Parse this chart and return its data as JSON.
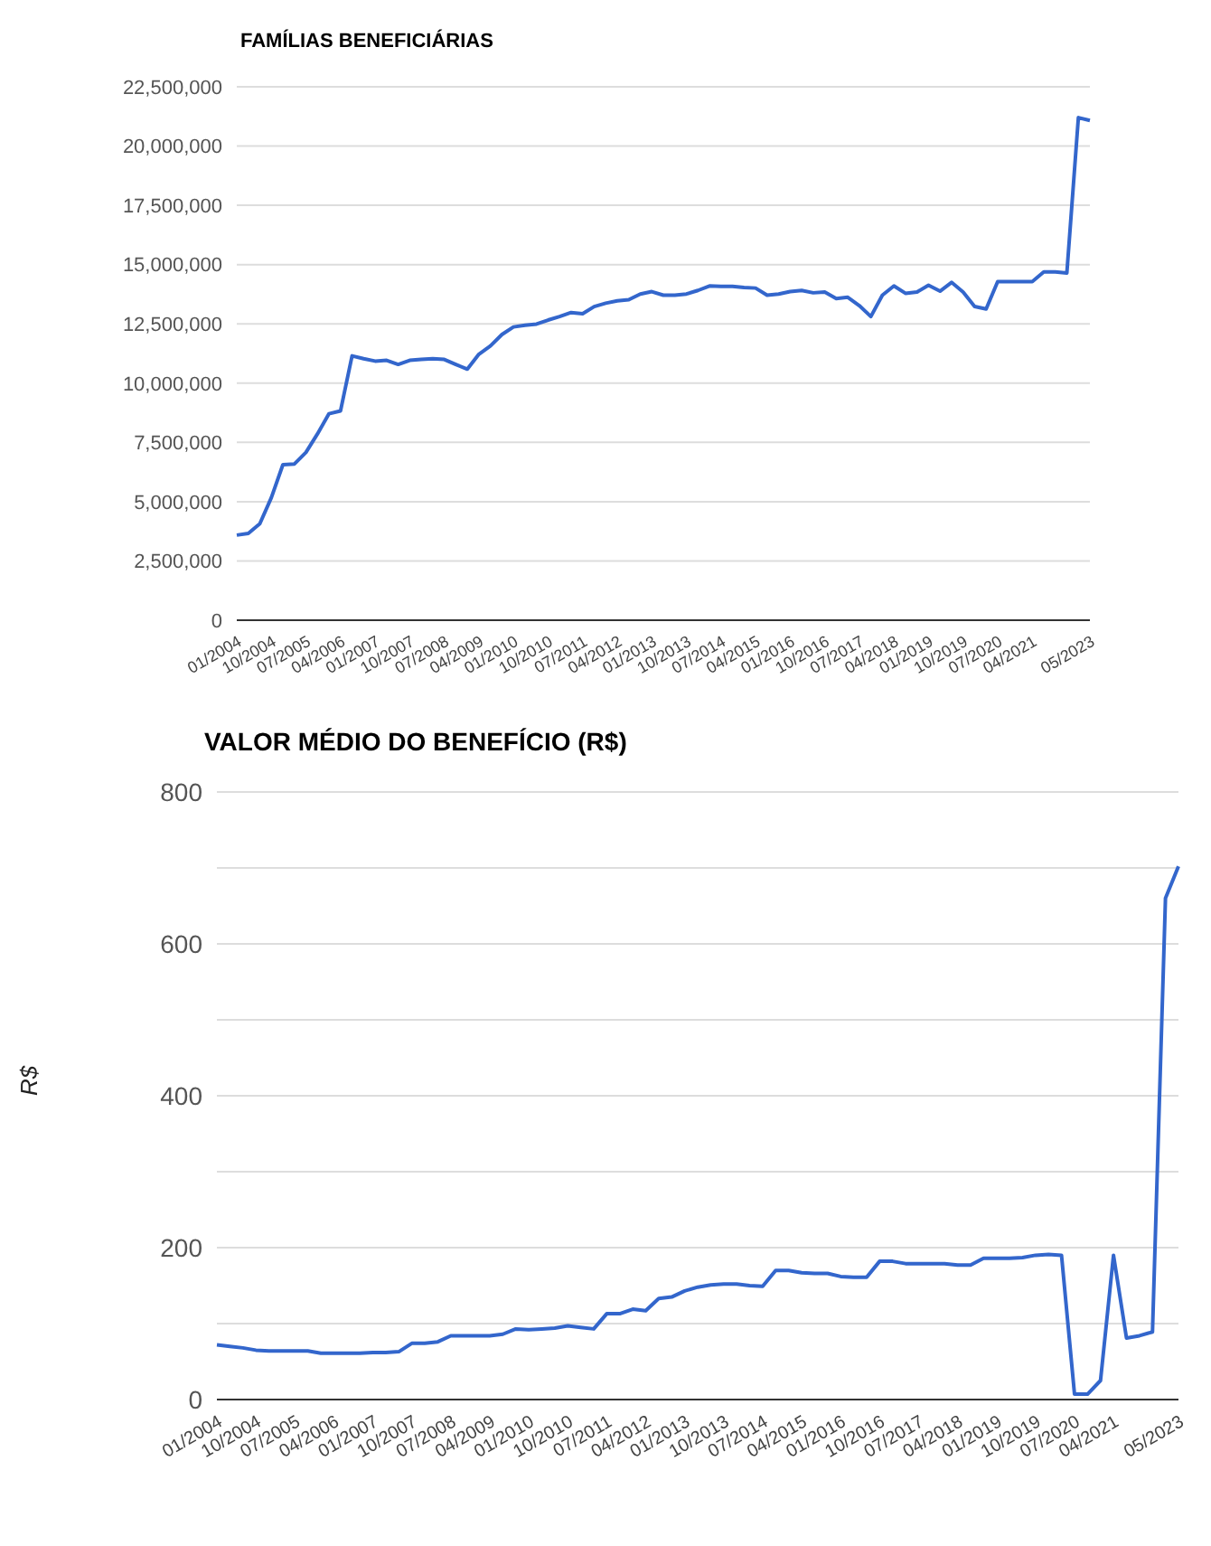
{
  "chart_data": [
    {
      "type": "line",
      "title": "FAMÍLIAS BENEFICIÁRIAS",
      "categories": [
        "01/2004",
        null,
        null,
        "10/2004",
        null,
        null,
        "07/2005",
        null,
        null,
        "04/2006",
        null,
        null,
        "01/2007",
        null,
        null,
        "10/2007",
        null,
        null,
        "07/2008",
        null,
        null,
        "04/2009",
        null,
        null,
        "01/2010",
        null,
        null,
        "10/2010",
        null,
        null,
        "07/2011",
        null,
        null,
        "04/2012",
        null,
        null,
        "01/2013",
        null,
        null,
        "10/2013",
        null,
        null,
        "07/2014",
        null,
        null,
        "04/2015",
        null,
        null,
        "01/2016",
        null,
        null,
        "10/2016",
        null,
        null,
        "07/2017",
        null,
        null,
        "04/2018",
        null,
        null,
        "01/2019",
        null,
        null,
        "10/2019",
        null,
        null,
        "07/2020",
        null,
        null,
        "04/2021",
        null,
        null,
        null,
        null,
        "05/2023"
      ],
      "series": [
        {
          "color": "#3366cc",
          "values": [
            3590000,
            3660000,
            4070000,
            5170000,
            6560000,
            6590000,
            7080000,
            7860000,
            8710000,
            8830000,
            11150000,
            11030000,
            10930000,
            10960000,
            10790000,
            10960000,
            11000000,
            11030000,
            11000000,
            10790000,
            10590000,
            11220000,
            11570000,
            12050000,
            12370000,
            12440000,
            12490000,
            12660000,
            12810000,
            12980000,
            12930000,
            13230000,
            13370000,
            13470000,
            13520000,
            13760000,
            13860000,
            13710000,
            13710000,
            13760000,
            13910000,
            14100000,
            14080000,
            14080000,
            14030000,
            14010000,
            13710000,
            13760000,
            13860000,
            13910000,
            13810000,
            13840000,
            13570000,
            13620000,
            13270000,
            12810000,
            13710000,
            14100000,
            13790000,
            13840000,
            14130000,
            13880000,
            14250000,
            13840000,
            13230000,
            13130000,
            14280000,
            14280000,
            14280000,
            14280000,
            14690000,
            14690000,
            14640000,
            21200000,
            21080000
          ]
        }
      ],
      "ylim": [
        0,
        22500000
      ],
      "yticks": [
        {
          "value": 0,
          "label": "0"
        },
        {
          "value": 2500000,
          "label": "2,500,000"
        },
        {
          "value": 5000000,
          "label": "5,000,000"
        },
        {
          "value": 7500000,
          "label": "7,500,000"
        },
        {
          "value": 10000000,
          "label": "10,000,000"
        },
        {
          "value": 12500000,
          "label": "12,500,000"
        },
        {
          "value": 15000000,
          "label": "15,000,000"
        },
        {
          "value": 17500000,
          "label": "17,500,000"
        },
        {
          "value": 20000000,
          "label": "20,000,000"
        },
        {
          "value": 22500000,
          "label": "22,500,000"
        }
      ],
      "grid": "y",
      "legend": false,
      "marker": "none"
    },
    {
      "type": "line",
      "title": "VALOR MÉDIO DO BENEFÍCIO (R$)",
      "ylabel": "R$",
      "categories": [
        "01/2004",
        null,
        null,
        "10/2004",
        null,
        null,
        "07/2005",
        null,
        null,
        "04/2006",
        null,
        null,
        "01/2007",
        null,
        null,
        "10/2007",
        null,
        null,
        "07/2008",
        null,
        null,
        "04/2009",
        null,
        null,
        "01/2010",
        null,
        null,
        "10/2010",
        null,
        null,
        "07/2011",
        null,
        null,
        "04/2012",
        null,
        null,
        "01/2013",
        null,
        null,
        "10/2013",
        null,
        null,
        "07/2014",
        null,
        null,
        "04/2015",
        null,
        null,
        "01/2016",
        null,
        null,
        "10/2016",
        null,
        null,
        "07/2017",
        null,
        null,
        "04/2018",
        null,
        null,
        "01/2019",
        null,
        null,
        "10/2019",
        null,
        null,
        "07/2020",
        null,
        null,
        "04/2021",
        null,
        null,
        null,
        null,
        "05/2023"
      ],
      "series": [
        {
          "color": "#3366cc",
          "values": [
            72,
            70,
            68,
            65,
            64,
            64,
            64,
            64,
            61,
            61,
            61,
            61,
            62,
            62,
            63,
            74,
            74,
            76,
            84,
            84,
            84,
            84,
            86,
            93,
            92,
            93,
            94,
            97,
            95,
            93,
            113,
            113,
            119,
            117,
            133,
            135,
            143,
            148,
            151,
            152,
            152,
            150,
            149,
            170,
            170,
            167,
            166,
            166,
            162,
            161,
            161,
            182,
            182,
            179,
            179,
            179,
            179,
            177,
            177,
            186,
            186,
            186,
            187,
            190,
            191,
            190,
            7,
            7,
            25,
            190,
            81,
            84,
            89,
            660,
            702
          ]
        }
      ],
      "ylim": [
        0,
        800
      ],
      "yticks": [
        0,
        {
          "value": 100,
          "label": null
        },
        200,
        {
          "value": 300,
          "label": null
        },
        400,
        {
          "value": 500,
          "label": null
        },
        600,
        {
          "value": 700,
          "label": null
        },
        800
      ],
      "grid": "y",
      "legend": false,
      "marker": "none"
    }
  ]
}
